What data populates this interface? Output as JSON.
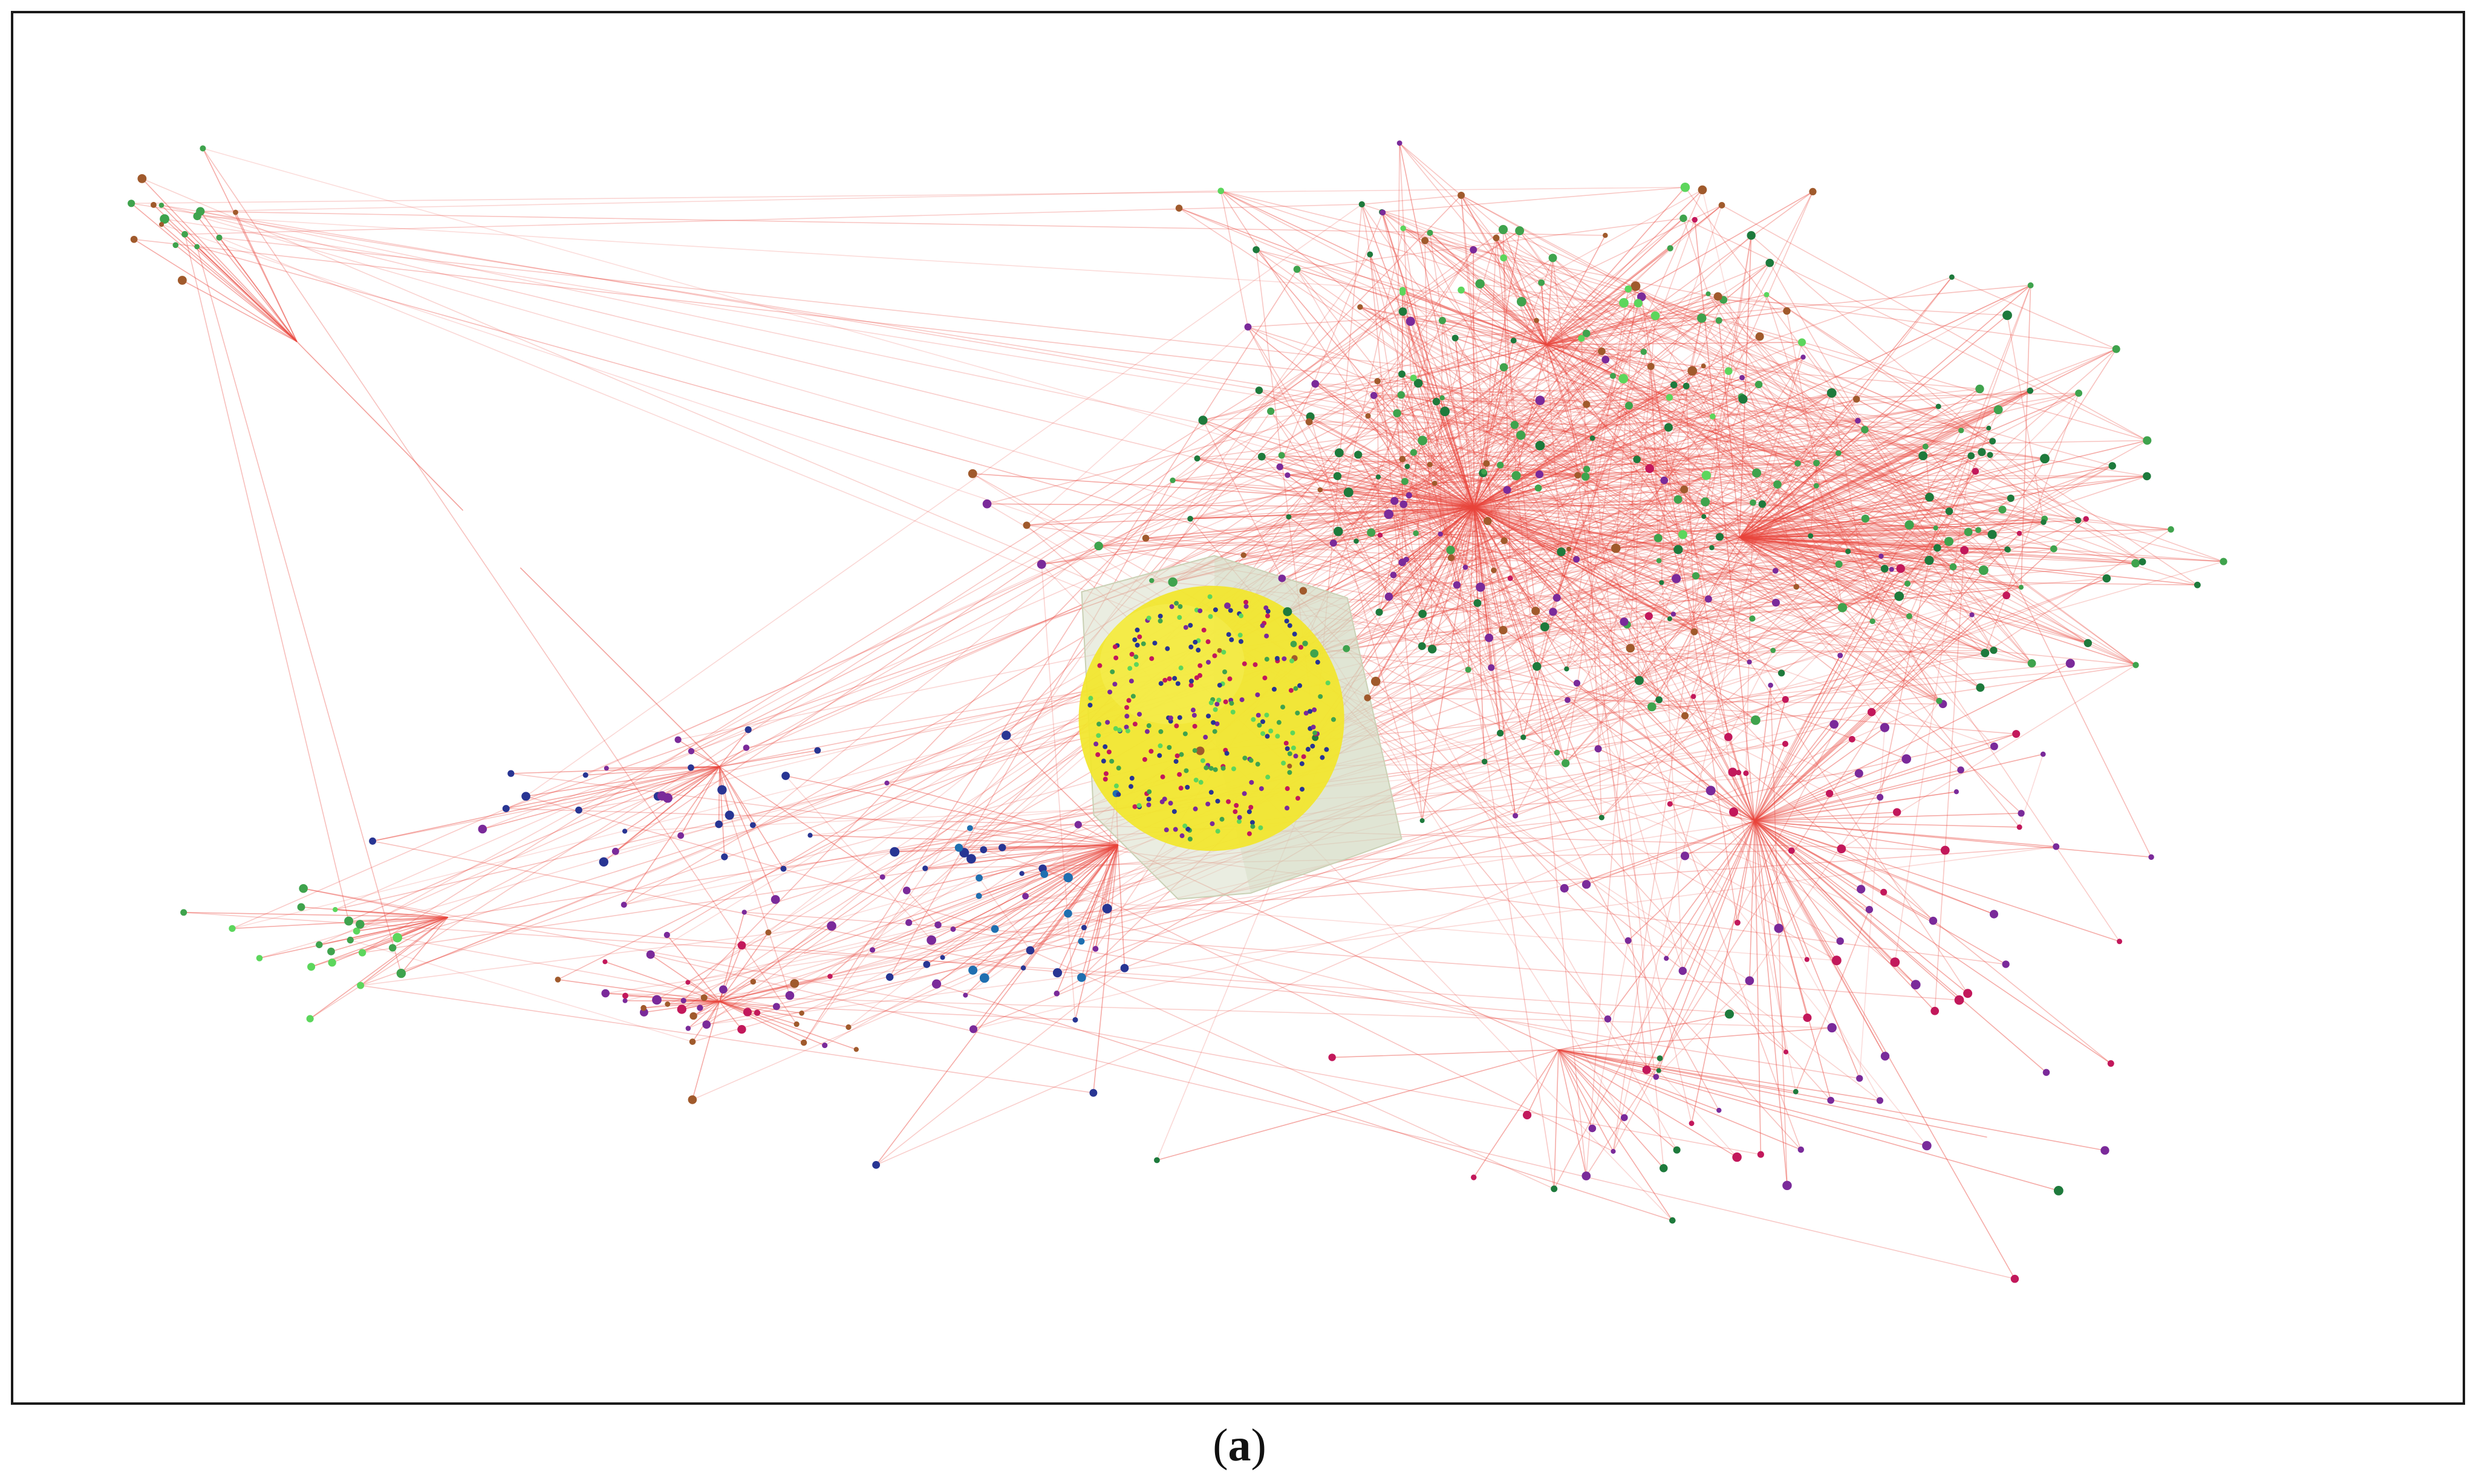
{
  "figure": {
    "caption_open": "(",
    "caption_letter": "a",
    "caption_close": ")"
  },
  "colors": {
    "background": "#ffffff",
    "frame": "#1a1a1a",
    "edge": "#e8453c",
    "sphere": "#f2e62a",
    "cube": "#d9dfc8",
    "node_green": "#3fa34d",
    "node_bright_green": "#5cd65c",
    "node_purple": "#7a2a9a",
    "node_blue": "#1f6fb0",
    "node_brown": "#a05a2c",
    "node_crimson": "#c2185b",
    "node_dark_green": "#1e7a3c",
    "node_navy": "#283593"
  }
}
